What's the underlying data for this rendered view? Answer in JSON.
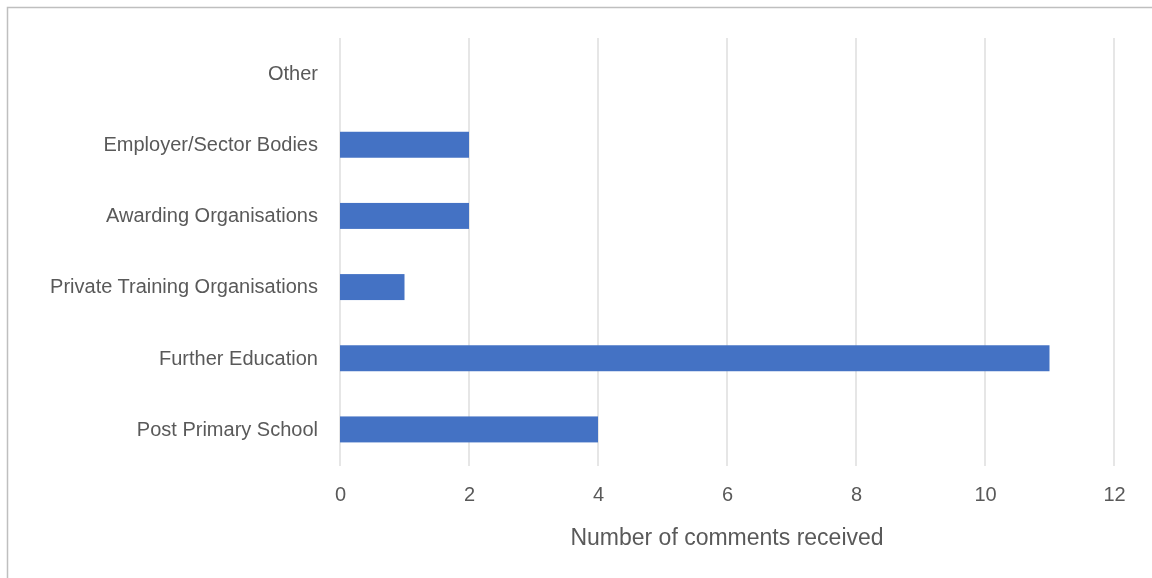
{
  "chart_data": {
    "type": "bar",
    "orientation": "horizontal",
    "categories": [
      "Other",
      "Employer/Sector Bodies",
      "Awarding Organisations",
      "Private Training Organisations",
      "Further Education",
      "Post Primary School"
    ],
    "values": [
      0,
      2,
      2,
      1,
      11,
      4
    ],
    "color": "#4472c4",
    "xlabel": "Number of comments received",
    "xlim": [
      0,
      12
    ],
    "xticks": [
      0,
      2,
      4,
      6,
      8,
      10,
      12
    ],
    "grid": "x"
  }
}
